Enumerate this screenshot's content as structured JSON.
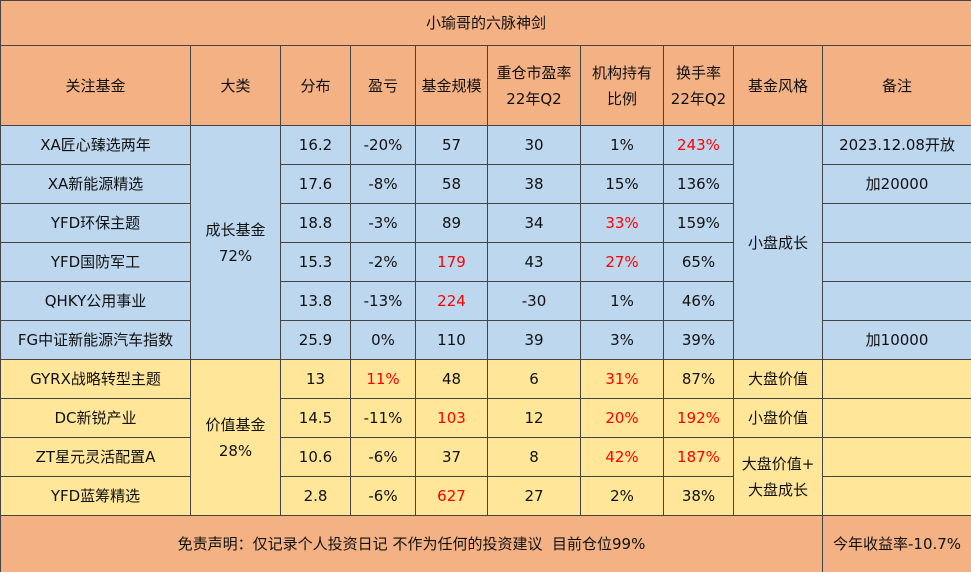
{
  "title": "小瑜哥的六脉神剑",
  "headers": [
    [
      "关注基金"
    ],
    [
      "大类"
    ],
    [
      "分布"
    ],
    [
      "盈亏"
    ],
    [
      "基金规模"
    ],
    [
      "重仓市盈率",
      "22年Q2"
    ],
    [
      "机构持有",
      "比例"
    ],
    [
      "换手率",
      "22年Q2"
    ],
    [
      "基金风格"
    ],
    [
      "备注"
    ]
  ],
  "header_color": "#f4b183",
  "highlight_color": "#ff0000",
  "groups": [
    {
      "label": [
        "成长基金",
        "72%"
      ],
      "color": "#bdd7ee",
      "styles": [
        {
          "label": [
            "小盘成长"
          ],
          "rows": [
            {
              "cells": [
                "XA匠心臻选两年",
                "16.2",
                "-20%",
                "57",
                "30",
                "1%",
                "243%"
              ],
              "note": "2023.12.08开放",
              "red": [
                6
              ]
            },
            {
              "cells": [
                "XA新能源精选",
                "17.6",
                "-8%",
                "58",
                "38",
                "15%",
                "136%"
              ],
              "note": "加20000",
              "red": []
            },
            {
              "cells": [
                "YFD环保主题",
                "18.8",
                "-3%",
                "89",
                "34",
                "33%",
                "159%"
              ],
              "red": [
                5
              ]
            },
            {
              "cells": [
                "YFD国防军工",
                "15.3",
                "-2%",
                "179",
                "43",
                "27%",
                "65%"
              ],
              "red": [
                3,
                5
              ]
            },
            {
              "cells": [
                "QHKY公用事业",
                "13.8",
                "-13%",
                "224",
                "-30",
                "1%",
                "46%"
              ],
              "red": [
                3
              ]
            },
            {
              "cells": [
                "FG中证新能源汽车指数",
                "25.9",
                "0%",
                "110",
                "39",
                "3%",
                "39%"
              ],
              "note": "加10000",
              "red": []
            }
          ]
        }
      ]
    },
    {
      "label": [
        "价值基金",
        "28%"
      ],
      "color": "#ffe699",
      "styles": [
        {
          "label": [
            "大盘价值"
          ],
          "rows": [
            {
              "cells": [
                "GYRX战略转型主题",
                "13",
                "11%",
                "48",
                "6",
                "31%",
                "87%"
              ],
              "red": [
                2,
                5
              ]
            }
          ]
        },
        {
          "label": [
            "小盘价值"
          ],
          "rows": [
            {
              "cells": [
                "DC新锐产业",
                "14.5",
                "-11%",
                "103",
                "12",
                "20%",
                "192%"
              ],
              "red": [
                3,
                5,
                6
              ]
            }
          ]
        },
        {
          "label": [
            "大盘价值+",
            "大盘成长"
          ],
          "rows": [
            {
              "cells": [
                "ZT星元灵活配置A",
                "10.6",
                "-6%",
                "37",
                "8",
                "42%",
                "187%"
              ],
              "red": [
                5,
                6
              ]
            },
            {
              "cells": [
                "YFD蓝筹精选",
                "2.8",
                "-6%",
                "627",
                "27",
                "2%",
                "38%"
              ],
              "red": [
                3
              ]
            }
          ]
        }
      ]
    }
  ],
  "footer": {
    "disclaimer": "免责声明：仅记录个人投资日记 不作为任何的投资建议  目前仓位99%",
    "return": "今年收益率-10.7%"
  }
}
